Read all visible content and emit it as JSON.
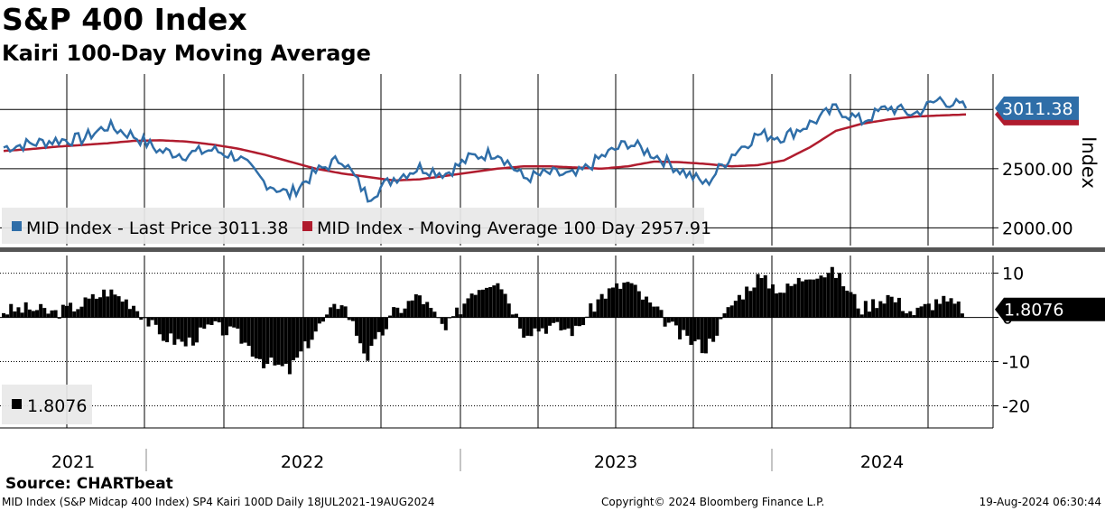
{
  "header": {
    "title": "S&P 400 Index",
    "subtitle": "Kairi 100-Day Moving Average"
  },
  "footer": {
    "source": "Source: CHARTbeat",
    "left": "MID Index (S&P Midcap 400 Index) SP4 Kairi 100D  Daily 18JUL2021-19AUG2024",
    "center": "Copyright© 2024 Bloomberg Finance L.P.",
    "right": "19-Aug-2024 06:30:44"
  },
  "colors": {
    "price": "#2f6ea8",
    "moving_average": "#b01c2e",
    "kairi": "#000000",
    "grid": "#000000"
  },
  "chart_data": [
    {
      "type": "line",
      "panel": "upper",
      "ylabel": "Index",
      "ylim": [
        1850,
        3300
      ],
      "yticks": [
        2000,
        2500
      ],
      "ytick_labels": [
        "2000.00",
        "2500.00"
      ],
      "legend_placement": "bottom-left",
      "x_labels": [
        "2021",
        "2022",
        "2023",
        "2024"
      ],
      "x": [
        "2021-07",
        "2021-08",
        "2021-09",
        "2021-10",
        "2021-11",
        "2021-12",
        "2022-01",
        "2022-02",
        "2022-03",
        "2022-04",
        "2022-05",
        "2022-06",
        "2022-07",
        "2022-08",
        "2022-09",
        "2022-10",
        "2022-11",
        "2022-12",
        "2023-01",
        "2023-02",
        "2023-03",
        "2023-04",
        "2023-05",
        "2023-06",
        "2023-07",
        "2023-08",
        "2023-09",
        "2023-10",
        "2023-11",
        "2023-12",
        "2024-01",
        "2024-02",
        "2024-03",
        "2024-04",
        "2024-05",
        "2024-06",
        "2024-07",
        "2024-08"
      ],
      "series": [
        {
          "name": "MID Index - Last Price",
          "last_value": "3011.38",
          "values": [
            2680,
            2710,
            2740,
            2750,
            2860,
            2780,
            2650,
            2620,
            2660,
            2600,
            2390,
            2280,
            2470,
            2590,
            2260,
            2420,
            2510,
            2460,
            2600,
            2640,
            2420,
            2460,
            2440,
            2600,
            2720,
            2620,
            2490,
            2370,
            2620,
            2790,
            2770,
            2880,
            3010,
            2900,
            3020,
            2960,
            3090,
            3011
          ]
        },
        {
          "name": "MID Index - Moving Average 100 Day",
          "last_value": "2957.91",
          "values": [
            2650,
            2665,
            2685,
            2700,
            2715,
            2735,
            2740,
            2730,
            2705,
            2670,
            2620,
            2560,
            2500,
            2460,
            2430,
            2400,
            2410,
            2440,
            2470,
            2500,
            2520,
            2520,
            2510,
            2500,
            2520,
            2560,
            2555,
            2540,
            2520,
            2530,
            2570,
            2680,
            2820,
            2880,
            2915,
            2940,
            2950,
            2958
          ]
        }
      ]
    },
    {
      "type": "bar",
      "panel": "lower",
      "ylim": [
        -25,
        14
      ],
      "yticks": [
        10,
        0,
        -10,
        -20
      ],
      "ytick_labels": [
        "10",
        "0",
        "-10",
        "-20"
      ],
      "legend_placement": "bottom-left",
      "x": [
        "2021-07",
        "2021-08",
        "2021-09",
        "2021-10",
        "2021-11",
        "2021-12",
        "2022-01",
        "2022-02",
        "2022-03",
        "2022-04",
        "2022-05",
        "2022-06",
        "2022-07",
        "2022-08",
        "2022-09",
        "2022-10",
        "2022-11",
        "2022-12",
        "2023-01",
        "2023-02",
        "2023-03",
        "2023-04",
        "2023-05",
        "2023-06",
        "2023-07",
        "2023-08",
        "2023-09",
        "2023-10",
        "2023-11",
        "2023-12",
        "2024-01",
        "2024-02",
        "2024-03",
        "2024-04",
        "2024-05",
        "2024-06",
        "2024-07",
        "2024-08"
      ],
      "series": [
        {
          "name": "1.8076",
          "last_value": "1.8076",
          "values": [
            1.5,
            2,
            1,
            3,
            6,
            3,
            -4,
            -6,
            -2,
            -4,
            -10,
            -12,
            -3,
            4,
            -9,
            1,
            5,
            -3,
            6,
            9,
            -3,
            -2,
            -3,
            5,
            8,
            2,
            -4,
            -7,
            3,
            9,
            6,
            10,
            10,
            2,
            5,
            1,
            4,
            1.8076
          ]
        }
      ]
    }
  ]
}
